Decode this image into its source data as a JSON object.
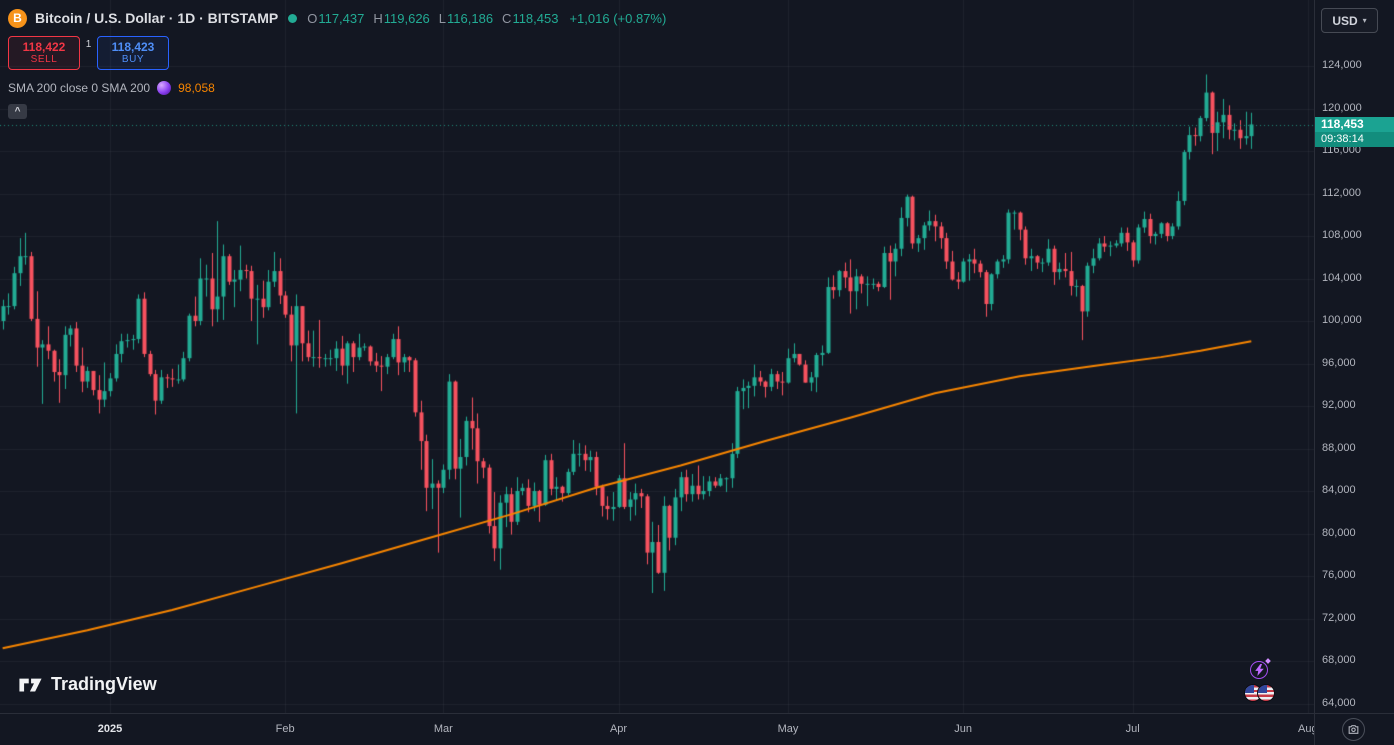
{
  "header": {
    "symbol_title": "Bitcoin / U.S. Dollar · 1D · BITSTAMP",
    "ohlc": {
      "o_label": "O",
      "o": "117,437",
      "h_label": "H",
      "h": "119,626",
      "l_label": "L",
      "l": "116,186",
      "c_label": "C",
      "c": "118,453",
      "change": "+1,016 (+0.87%)"
    }
  },
  "trade_panel": {
    "sell_price": "118,422",
    "sell_label": "SELL",
    "spread": "1",
    "buy_price": "118,423",
    "buy_label": "BUY"
  },
  "indicator": {
    "label": "SMA 200 close 0 SMA 200",
    "value": "98,058"
  },
  "price_scale": {
    "currency": "USD",
    "last_price": "118,453",
    "countdown": "09:38:14"
  },
  "watermark": {
    "brand": "TradingView"
  },
  "icons": {
    "bitcoin_glyph": "B",
    "collapse_chevron": "^",
    "dropdown_caret": "▾"
  },
  "colors": {
    "background": "#131722",
    "grid": "rgba(140,150,170,0.09)",
    "up": "#22ab94",
    "down": "#f7525f",
    "sma_orange": "#f78500",
    "price_line": "rgba(34,171,148,0.8)",
    "sell_red": "#f23645",
    "buy_blue": "#2962ff",
    "price_tag_bg": "#1ba392",
    "countdown_bg": "#128d7d",
    "text_primary": "#d1d4dc",
    "text_secondary": "#b2b5be",
    "bitcoin_orange": "#f7931a",
    "panel_border": "#2a2e39"
  },
  "chart_data": {
    "type": "candlestick",
    "title": "Bitcoin / U.S. Dollar",
    "exchange": "BITSTAMP",
    "interval": "1D",
    "price_unit": "USD (candle and overlay values in thousands of USD)",
    "start_date": "2024-12-13",
    "last_price": 118453,
    "countdown": "09:38:14",
    "sma200_last": 98058,
    "y_axis": {
      "min": 64000,
      "max": 124000,
      "tick_step": 4000,
      "unit": "USD"
    },
    "x_axis": {
      "labels": [
        {
          "label": "2025",
          "day": 19,
          "major": true
        },
        {
          "label": "Feb",
          "day": 50
        },
        {
          "label": "Mar",
          "day": 78
        },
        {
          "label": "Apr",
          "day": 109
        },
        {
          "label": "May",
          "day": 139
        },
        {
          "label": "Jun",
          "day": 170
        },
        {
          "label": "Jul",
          "day": 200
        },
        {
          "label": "Aug",
          "day": 231
        }
      ]
    },
    "candles": [
      [
        100,
        102,
        99.2,
        101.4
      ],
      [
        101.4,
        102.6,
        100.6,
        101.4
      ],
      [
        101.4,
        105.1,
        101.1,
        104.5
      ],
      [
        104.5,
        107.8,
        103.3,
        106.1
      ],
      [
        106.1,
        108.3,
        105.3,
        106.1
      ],
      [
        106.1,
        106.5,
        100,
        100.2
      ],
      [
        100.2,
        102.8,
        95.7,
        97.5
      ],
      [
        97.5,
        98.2,
        92.2,
        97.8
      ],
      [
        97.8,
        99.5,
        96.4,
        97.2
      ],
      [
        97.2,
        97.3,
        94.3,
        95.2
      ],
      [
        95.2,
        96.4,
        92.3,
        94.9
      ],
      [
        94.9,
        99.5,
        93.6,
        98.7
      ],
      [
        98.7,
        99.6,
        97.6,
        99.3
      ],
      [
        99.3,
        99.9,
        95.2,
        95.8
      ],
      [
        95.8,
        97.5,
        93.3,
        94.3
      ],
      [
        94.3,
        95.7,
        93.7,
        95.3
      ],
      [
        95.3,
        95.3,
        93,
        93.5
      ],
      [
        93.5,
        94.9,
        91.3,
        92.6
      ],
      [
        92.6,
        96.1,
        91.9,
        93.4
      ],
      [
        93.4,
        95.1,
        92.9,
        94.6
      ],
      [
        94.6,
        97.8,
        94.3,
        96.9
      ],
      [
        96.9,
        98.8,
        96.1,
        98.1
      ],
      [
        98.1,
        98.8,
        97.5,
        98.2
      ],
      [
        98.2,
        98.7,
        97.3,
        98.3
      ],
      [
        98.3,
        102.5,
        97.9,
        102.1
      ],
      [
        102.1,
        102.7,
        96.6,
        96.9
      ],
      [
        96.9,
        97.2,
        94.8,
        95
      ],
      [
        95,
        95.4,
        91.2,
        92.5
      ],
      [
        92.5,
        95.4,
        92.2,
        94.7
      ],
      [
        94.7,
        95,
        93.7,
        94.6
      ],
      [
        94.6,
        95.5,
        93.8,
        94.5
      ],
      [
        94.5,
        95.9,
        94.1,
        94.5
      ],
      [
        94.5,
        97.1,
        94.3,
        96.5
      ],
      [
        96.5,
        100.7,
        96.2,
        100.5
      ],
      [
        100.5,
        102.3,
        99.5,
        100
      ],
      [
        100,
        105.9,
        99.6,
        104
      ],
      [
        104,
        105.3,
        102.3,
        104
      ],
      [
        104,
        106.4,
        99.5,
        101.1
      ],
      [
        101.1,
        109.4,
        99.9,
        102.3
      ],
      [
        102.3,
        107.2,
        100.1,
        106.1
      ],
      [
        106.1,
        106.3,
        103.4,
        103.7
      ],
      [
        103.7,
        104.8,
        101.3,
        103.9
      ],
      [
        103.9,
        107.1,
        102.8,
        104.8
      ],
      [
        104.8,
        105.3,
        104,
        104.7
      ],
      [
        104.7,
        105.2,
        100,
        102.1
      ],
      [
        102.1,
        103.4,
        97.8,
        102.1
      ],
      [
        102.1,
        103.8,
        100.3,
        101.3
      ],
      [
        101.3,
        104.8,
        101,
        103.7
      ],
      [
        103.7,
        106.5,
        103.2,
        104.7
      ],
      [
        104.7,
        105.9,
        101.6,
        102.4
      ],
      [
        102.4,
        102.8,
        100.3,
        100.6
      ],
      [
        100.6,
        101.4,
        96.2,
        97.7
      ],
      [
        97.7,
        102.5,
        91.3,
        101.4
      ],
      [
        101.4,
        101.4,
        96.2,
        97.9
      ],
      [
        97.9,
        99.1,
        96.2,
        96.6
      ],
      [
        96.6,
        99.1,
        95.7,
        96.6
      ],
      [
        96.6,
        100.1,
        95.6,
        96.5
      ],
      [
        96.5,
        96.9,
        95.7,
        96.5
      ],
      [
        96.5,
        97.3,
        95.8,
        96.5
      ],
      [
        96.5,
        98.1,
        95.3,
        97.4
      ],
      [
        97.4,
        98.6,
        94.9,
        95.8
      ],
      [
        95.8,
        98.1,
        94.1,
        97.9
      ],
      [
        97.9,
        98.1,
        95.2,
        96.6
      ],
      [
        96.6,
        98.8,
        96.3,
        97.5
      ],
      [
        97.5,
        97.9,
        97.2,
        97.6
      ],
      [
        97.6,
        97.7,
        95.8,
        96.2
      ],
      [
        96.2,
        97,
        95.2,
        95.8
      ],
      [
        95.8,
        96.7,
        93.4,
        95.7
      ],
      [
        95.7,
        96.9,
        95,
        96.6
      ],
      [
        96.6,
        98.8,
        96.4,
        98.3
      ],
      [
        98.3,
        99.5,
        94.9,
        96.1
      ],
      [
        96.1,
        96.9,
        95.2,
        96.6
      ],
      [
        96.6,
        96.7,
        95.2,
        96.3
      ],
      [
        96.3,
        96.5,
        91,
        91.4
      ],
      [
        91.4,
        92.5,
        86,
        88.7
      ],
      [
        88.7,
        89.3,
        82.1,
        84.3
      ],
      [
        84.3,
        87,
        82.3,
        84.7
      ],
      [
        84.7,
        85,
        78.2,
        84.3
      ],
      [
        84.3,
        86.5,
        83.8,
        86
      ],
      [
        86,
        95,
        85.1,
        94.3
      ],
      [
        94.3,
        94.4,
        85.1,
        86.1
      ],
      [
        86.1,
        88.9,
        81.5,
        87.2
      ],
      [
        87.2,
        91,
        86.4,
        90.6
      ],
      [
        90.6,
        92.8,
        87.9,
        89.9
      ],
      [
        89.9,
        91.3,
        84.7,
        86.8
      ],
      [
        86.8,
        87.1,
        85.2,
        86.2
      ],
      [
        86.2,
        86.5,
        80,
        80.7
      ],
      [
        80.7,
        83.9,
        77.4,
        78.6
      ],
      [
        78.6,
        83.6,
        76.6,
        82.9
      ],
      [
        82.9,
        84.4,
        80.6,
        83.7
      ],
      [
        83.7,
        84.3,
        79.9,
        81.1
      ],
      [
        81.1,
        85.3,
        80.8,
        84
      ],
      [
        84,
        84.7,
        83.6,
        84.3
      ],
      [
        84.3,
        85.1,
        82,
        82.6
      ],
      [
        82.6,
        84.8,
        82.1,
        84
      ],
      [
        84,
        84.1,
        81.1,
        82.7
      ],
      [
        82.7,
        87.4,
        82.6,
        86.9
      ],
      [
        86.9,
        87.5,
        83.6,
        84.2
      ],
      [
        84.2,
        85.3,
        83.1,
        84.4
      ],
      [
        84.4,
        84.5,
        83,
        83.8
      ],
      [
        83.8,
        86.1,
        83.6,
        85.8
      ],
      [
        85.8,
        88.8,
        85.5,
        87.5
      ],
      [
        87.5,
        88.5,
        86.3,
        87.5
      ],
      [
        87.5,
        88.3,
        85.9,
        86.9
      ],
      [
        86.9,
        87.8,
        85.8,
        87.2
      ],
      [
        87.2,
        87.7,
        83.6,
        84.4
      ],
      [
        84.4,
        84.6,
        81.6,
        82.6
      ],
      [
        82.6,
        83.5,
        81.3,
        82.3
      ],
      [
        82.3,
        83.9,
        81.2,
        82.5
      ],
      [
        82.5,
        85.5,
        82.4,
        85.2
      ],
      [
        85.2,
        88.5,
        82.3,
        82.5
      ],
      [
        82.5,
        83.9,
        81.2,
        83.2
      ],
      [
        83.2,
        84.7,
        81.7,
        83.8
      ],
      [
        83.8,
        84.2,
        82.4,
        83.5
      ],
      [
        83.5,
        83.7,
        77.1,
        78.2
      ],
      [
        78.2,
        81.1,
        74.4,
        79.2
      ],
      [
        79.2,
        80.8,
        76.2,
        76.3
      ],
      [
        76.3,
        83.5,
        74.6,
        82.6
      ],
      [
        82.6,
        82.7,
        78.4,
        79.6
      ],
      [
        79.6,
        84.2,
        78.9,
        83.4
      ],
      [
        83.4,
        85.8,
        82.1,
        85.3
      ],
      [
        85.3,
        86,
        83,
        83.7
      ],
      [
        83.7,
        85.6,
        83,
        84.5
      ],
      [
        84.5,
        86.4,
        83.2,
        83.7
      ],
      [
        83.7,
        85.4,
        83.2,
        84
      ],
      [
        84,
        85.4,
        83.5,
        84.9
      ],
      [
        84.9,
        85.3,
        84.3,
        84.5
      ],
      [
        84.5,
        85.6,
        84.4,
        85.2
      ],
      [
        85.2,
        85.3,
        83.9,
        85.2
      ],
      [
        85.2,
        88.5,
        84.3,
        87.5
      ],
      [
        87.5,
        93.8,
        87.1,
        93.4
      ],
      [
        93.4,
        94.5,
        91.7,
        93.7
      ],
      [
        93.7,
        94.3,
        91.8,
        93.9
      ],
      [
        93.9,
        95.9,
        92.9,
        94.7
      ],
      [
        94.7,
        95.3,
        93.9,
        94.3
      ],
      [
        94.3,
        94.4,
        92.8,
        93.8
      ],
      [
        93.8,
        95.5,
        93.4,
        95
      ],
      [
        95,
        95.3,
        93.6,
        94.3
      ],
      [
        94.3,
        95.2,
        93,
        94.2
      ],
      [
        94.2,
        97.4,
        94.1,
        96.5
      ],
      [
        96.5,
        97.9,
        96.1,
        96.9
      ],
      [
        96.9,
        96.9,
        95.8,
        95.9
      ],
      [
        95.9,
        96.3,
        94.2,
        94.2
      ],
      [
        94.2,
        95.2,
        93.4,
        94.7
      ],
      [
        94.7,
        97,
        93.3,
        96.8
      ],
      [
        96.8,
        97.7,
        95.8,
        97
      ],
      [
        97,
        104.1,
        96.9,
        103.2
      ],
      [
        103.2,
        104.3,
        102.1,
        102.9
      ],
      [
        102.9,
        104.8,
        102.3,
        104.7
      ],
      [
        104.7,
        105.5,
        103.1,
        104.1
      ],
      [
        104.1,
        105.8,
        100.7,
        102.8
      ],
      [
        102.8,
        104.9,
        101.1,
        104.2
      ],
      [
        104.2,
        104.4,
        102.6,
        103.5
      ],
      [
        103.5,
        104.2,
        101.4,
        103.5
      ],
      [
        103.5,
        104,
        103,
        103.5
      ],
      [
        103.5,
        103.7,
        102.8,
        103.2
      ],
      [
        103.2,
        107,
        103.1,
        106.4
      ],
      [
        106.4,
        107.1,
        102,
        105.6
      ],
      [
        105.6,
        107.3,
        104.2,
        106.8
      ],
      [
        106.8,
        110.7,
        106.1,
        109.7
      ],
      [
        109.7,
        111.9,
        108.9,
        111.7
      ],
      [
        111.7,
        111.8,
        106.8,
        107.3
      ],
      [
        107.3,
        108.1,
        106.5,
        107.8
      ],
      [
        107.8,
        109.3,
        106.7,
        109
      ],
      [
        109,
        110.4,
        108.5,
        109.4
      ],
      [
        109.4,
        110,
        107.5,
        108.9
      ],
      [
        108.9,
        109.3,
        106.8,
        107.8
      ],
      [
        107.8,
        108.3,
        104.9,
        105.6
      ],
      [
        105.6,
        106.6,
        103.8,
        103.9
      ],
      [
        103.9,
        104.6,
        103,
        103.7
      ],
      [
        103.7,
        105.9,
        103.6,
        105.6
      ],
      [
        105.6,
        106.3,
        103.8,
        105.8
      ],
      [
        105.8,
        106.8,
        104.5,
        105.4
      ],
      [
        105.4,
        105.7,
        104.1,
        104.6
      ],
      [
        104.6,
        104.8,
        100.4,
        101.6
      ],
      [
        101.6,
        104.5,
        101,
        104.4
      ],
      [
        104.4,
        105.8,
        104,
        105.6
      ],
      [
        105.6,
        106.2,
        105,
        105.8
      ],
      [
        105.8,
        110.5,
        105.4,
        110.2
      ],
      [
        110.2,
        110.4,
        108.6,
        110.2
      ],
      [
        110.2,
        110.3,
        107.6,
        108.6
      ],
      [
        108.6,
        108.9,
        105.3,
        105.9
      ],
      [
        105.9,
        106.8,
        104.7,
        106.1
      ],
      [
        106.1,
        106.2,
        104.9,
        105.5
      ],
      [
        105.5,
        105.9,
        104.6,
        105.5
      ],
      [
        105.5,
        107.7,
        105.2,
        106.8
      ],
      [
        106.8,
        107.1,
        103.4,
        104.6
      ],
      [
        104.6,
        105.5,
        103.9,
        104.9
      ],
      [
        104.9,
        106.4,
        104.1,
        104.7
      ],
      [
        104.7,
        106.5,
        102.4,
        103.3
      ],
      [
        103.3,
        103.9,
        102.3,
        103.3
      ],
      [
        103.3,
        103.4,
        98.2,
        100.9
      ],
      [
        100.9,
        105.5,
        100.4,
        105.2
      ],
      [
        105.2,
        106.8,
        104.5,
        105.9
      ],
      [
        105.9,
        107.8,
        105.7,
        107.3
      ],
      [
        107.3,
        108,
        106.5,
        107
      ],
      [
        107,
        107.5,
        106.1,
        107.1
      ],
      [
        107.1,
        107.6,
        106.9,
        107.3
      ],
      [
        107.3,
        108.8,
        107,
        108.3
      ],
      [
        108.3,
        108.8,
        106.6,
        107.4
      ],
      [
        107.4,
        107.6,
        105.1,
        105.7
      ],
      [
        105.7,
        109.1,
        105.4,
        108.8
      ],
      [
        108.8,
        110.3,
        108.3,
        109.6
      ],
      [
        109.6,
        110.1,
        107.3,
        108
      ],
      [
        108,
        108.4,
        107.2,
        108.2
      ],
      [
        108.2,
        109.3,
        107.8,
        109.2
      ],
      [
        109.2,
        109.3,
        107.5,
        108
      ],
      [
        108,
        109.2,
        107.7,
        108.9
      ],
      [
        108.9,
        112.2,
        108.6,
        111.3
      ],
      [
        111.3,
        116.1,
        110.9,
        115.9
      ],
      [
        115.9,
        118.3,
        115.2,
        117.5
      ],
      [
        117.5,
        118.2,
        116.5,
        117.4
      ],
      [
        117.4,
        119.3,
        116.9,
        119.1
      ],
      [
        119.1,
        123.2,
        118.8,
        121.5
      ],
      [
        121.5,
        121.6,
        115.7,
        117.7
      ],
      [
        117.7,
        119.7,
        116,
        118.7
      ],
      [
        118.7,
        120.9,
        117.2,
        119.4
      ],
      [
        119.4,
        120.3,
        117.1,
        118
      ],
      [
        118,
        118.6,
        117,
        118
      ],
      [
        118,
        118.9,
        116.2,
        117.2
      ],
      [
        117.2,
        119.7,
        116.6,
        117.4
      ],
      [
        117.4,
        119.6,
        116.2,
        118.5
      ]
    ],
    "overlays": [
      {
        "name": "SMA 200",
        "color": "#f78500",
        "points": [
          [
            0,
            69.2
          ],
          [
            15,
            70.9
          ],
          [
            30,
            72.8
          ],
          [
            45,
            75
          ],
          [
            60,
            77.2
          ],
          [
            75,
            79.5
          ],
          [
            90,
            81.8
          ],
          [
            105,
            84.3
          ],
          [
            120,
            86.4
          ],
          [
            135,
            88.7
          ],
          [
            150,
            90.9
          ],
          [
            165,
            93.2
          ],
          [
            180,
            94.8
          ],
          [
            195,
            95.9
          ],
          [
            205,
            96.6
          ],
          [
            212,
            97.2
          ],
          [
            221,
            98.1
          ]
        ]
      }
    ],
    "legend_position": "top-left",
    "grid": true
  }
}
